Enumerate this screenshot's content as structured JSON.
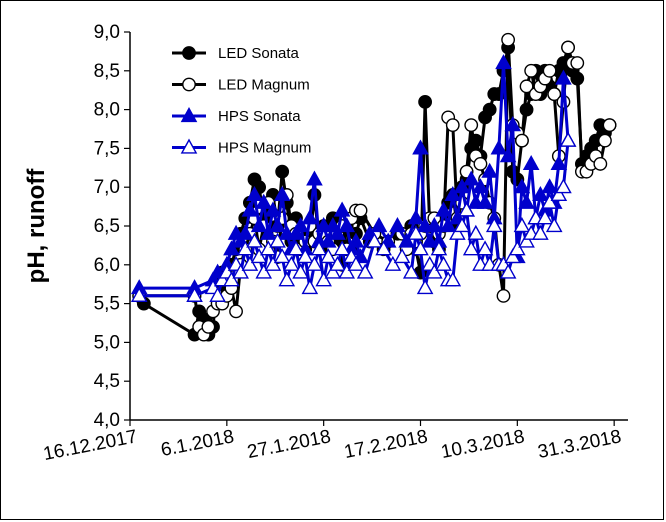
{
  "chart_data": {
    "type": "line",
    "title": "",
    "xlabel": "",
    "ylabel": "pH, runoff",
    "ylim": [
      4.0,
      9.0
    ],
    "ytick_labels": [
      "4,0",
      "4,5",
      "5,0",
      "5,5",
      "6,0",
      "6,5",
      "7,0",
      "7,5",
      "8,0",
      "8,5",
      "9,0"
    ],
    "xlim_days": [
      0,
      108
    ],
    "xtick_days": [
      0,
      21,
      42,
      63,
      84,
      105
    ],
    "xtick_labels": [
      "16.12.2017",
      "6.1.2018",
      "27.1.2018",
      "17.2.2018",
      "10.3.2018",
      "31.3.2018"
    ],
    "legend": [
      "LED Sonata",
      "LED Magnum",
      "HPS Sonata",
      "HPS Magnum"
    ],
    "legend_position": "top-left",
    "series": [
      {
        "name": "LED Sonata",
        "color": "#000000",
        "marker": "circle",
        "filled": true,
        "points": [
          [
            2,
            5.6
          ],
          [
            3,
            5.5
          ],
          [
            14,
            5.1
          ],
          [
            15,
            5.4
          ],
          [
            16,
            5.3
          ],
          [
            17,
            5.1
          ],
          [
            18,
            5.2
          ],
          [
            19,
            5.8
          ],
          [
            20,
            5.9
          ],
          [
            21,
            5.7
          ],
          [
            22,
            6.0
          ],
          [
            23,
            6.2
          ],
          [
            24,
            6.4
          ],
          [
            25,
            6.6
          ],
          [
            26,
            6.8
          ],
          [
            27,
            7.1
          ],
          [
            28,
            7.0
          ],
          [
            29,
            6.6
          ],
          [
            30,
            6.5
          ],
          [
            31,
            6.9
          ],
          [
            32,
            6.5
          ],
          [
            33,
            7.2
          ],
          [
            34,
            6.8
          ],
          [
            35,
            6.3
          ],
          [
            36,
            6.6
          ],
          [
            37,
            6.4
          ],
          [
            38,
            6.2
          ],
          [
            39,
            6.3
          ],
          [
            40,
            6.9
          ],
          [
            41,
            6.3
          ],
          [
            42,
            6.5
          ],
          [
            43,
            6.2
          ],
          [
            44,
            6.6
          ],
          [
            45,
            6.3
          ],
          [
            46,
            6.0
          ],
          [
            47,
            6.5
          ],
          [
            48,
            6.2
          ],
          [
            49,
            6.4
          ],
          [
            50,
            6.6
          ],
          [
            52,
            6.3
          ],
          [
            55,
            6.2
          ],
          [
            58,
            6.4
          ],
          [
            61,
            6.5
          ],
          [
            62,
            6.2
          ],
          [
            63,
            5.9
          ],
          [
            64,
            8.1
          ],
          [
            65,
            6.5
          ],
          [
            66,
            6.3
          ],
          [
            67,
            6.2
          ],
          [
            68,
            6.6
          ],
          [
            69,
            6.8
          ],
          [
            70,
            6.9
          ],
          [
            71,
            6.5
          ],
          [
            72,
            7.0
          ],
          [
            73,
            7.1
          ],
          [
            74,
            7.5
          ],
          [
            75,
            7.6
          ],
          [
            76,
            7.4
          ],
          [
            77,
            7.9
          ],
          [
            78,
            8.0
          ],
          [
            79,
            8.2
          ],
          [
            80,
            8.2
          ],
          [
            81,
            8.5
          ],
          [
            82,
            8.8
          ],
          [
            83,
            7.2
          ],
          [
            84,
            7.1
          ],
          [
            85,
            7.6
          ],
          [
            86,
            8.0
          ],
          [
            87,
            8.2
          ],
          [
            88,
            8.5
          ],
          [
            89,
            8.2
          ],
          [
            90,
            8.5
          ],
          [
            91,
            8.3
          ],
          [
            92,
            8.2
          ],
          [
            93,
            8.5
          ],
          [
            94,
            8.6
          ],
          [
            95,
            8.8
          ],
          [
            96,
            8.5
          ],
          [
            97,
            8.4
          ],
          [
            98,
            7.3
          ],
          [
            99,
            7.4
          ],
          [
            100,
            7.5
          ],
          [
            101,
            7.6
          ],
          [
            102,
            7.8
          ],
          [
            103,
            7.7
          ],
          [
            104,
            7.8
          ]
        ]
      },
      {
        "name": "LED Magnum",
        "color": "#000000",
        "marker": "circle",
        "filled": false,
        "points": [
          [
            2,
            5.6
          ],
          [
            14,
            5.6
          ],
          [
            15,
            5.2
          ],
          [
            16,
            5.1
          ],
          [
            17,
            5.2
          ],
          [
            18,
            5.4
          ],
          [
            19,
            5.5
          ],
          [
            20,
            5.5
          ],
          [
            21,
            5.6
          ],
          [
            22,
            5.7
          ],
          [
            23,
            5.4
          ],
          [
            24,
            6.0
          ],
          [
            25,
            6.2
          ],
          [
            26,
            6.4
          ],
          [
            27,
            6.6
          ],
          [
            28,
            6.2
          ],
          [
            29,
            6.5
          ],
          [
            30,
            6.8
          ],
          [
            31,
            6.3
          ],
          [
            32,
            6.1
          ],
          [
            33,
            6.6
          ],
          [
            34,
            6.9
          ],
          [
            35,
            6.5
          ],
          [
            36,
            6.4
          ],
          [
            37,
            6.2
          ],
          [
            38,
            6.3
          ],
          [
            39,
            6.5
          ],
          [
            40,
            6.3
          ],
          [
            41,
            6.4
          ],
          [
            42,
            6.4
          ],
          [
            43,
            6.3
          ],
          [
            44,
            6.2
          ],
          [
            45,
            6.4
          ],
          [
            46,
            6.5
          ],
          [
            47,
            6.2
          ],
          [
            48,
            6.6
          ],
          [
            49,
            6.7
          ],
          [
            50,
            6.7
          ],
          [
            53,
            6.4
          ],
          [
            56,
            6.3
          ],
          [
            59,
            6.4
          ],
          [
            60,
            6.2
          ],
          [
            61,
            6.4
          ],
          [
            62,
            6.3
          ],
          [
            63,
            6.4
          ],
          [
            64,
            6.5
          ],
          [
            65,
            6.6
          ],
          [
            66,
            6.6
          ],
          [
            67,
            6.4
          ],
          [
            68,
            6.5
          ],
          [
            69,
            7.9
          ],
          [
            70,
            7.8
          ],
          [
            71,
            6.6
          ],
          [
            72,
            6.8
          ],
          [
            73,
            7.2
          ],
          [
            74,
            7.8
          ],
          [
            75,
            7.4
          ],
          [
            76,
            7.3
          ],
          [
            77,
            7.1
          ],
          [
            78,
            6.8
          ],
          [
            79,
            6.6
          ],
          [
            80,
            6.0
          ],
          [
            81,
            5.6
          ],
          [
            82,
            8.9
          ],
          [
            83,
            7.8
          ],
          [
            84,
            7.7
          ],
          [
            85,
            7.6
          ],
          [
            86,
            8.3
          ],
          [
            87,
            8.5
          ],
          [
            88,
            8.2
          ],
          [
            89,
            8.3
          ],
          [
            90,
            8.4
          ],
          [
            91,
            8.5
          ],
          [
            92,
            8.2
          ],
          [
            93,
            7.4
          ],
          [
            94,
            8.1
          ],
          [
            95,
            8.8
          ],
          [
            96,
            8.6
          ],
          [
            97,
            8.6
          ],
          [
            98,
            7.2
          ],
          [
            99,
            7.2
          ],
          [
            100,
            7.3
          ],
          [
            101,
            7.4
          ],
          [
            102,
            7.3
          ],
          [
            103,
            7.6
          ],
          [
            104,
            7.8
          ]
        ]
      },
      {
        "name": "HPS Sonata",
        "color": "#0000cc",
        "marker": "triangle",
        "filled": true,
        "points": [
          [
            2,
            5.7
          ],
          [
            14,
            5.7
          ],
          [
            18,
            5.8
          ],
          [
            19,
            5.9
          ],
          [
            20,
            5.8
          ],
          [
            21,
            6.0
          ],
          [
            22,
            6.2
          ],
          [
            23,
            6.4
          ],
          [
            24,
            6.3
          ],
          [
            25,
            6.4
          ],
          [
            26,
            6.7
          ],
          [
            27,
            6.9
          ],
          [
            28,
            6.5
          ],
          [
            29,
            6.8
          ],
          [
            30,
            6.4
          ],
          [
            31,
            6.7
          ],
          [
            32,
            6.5
          ],
          [
            33,
            6.9
          ],
          [
            34,
            6.4
          ],
          [
            35,
            6.2
          ],
          [
            36,
            6.4
          ],
          [
            37,
            6.5
          ],
          [
            38,
            6.2
          ],
          [
            39,
            6.6
          ],
          [
            40,
            7.1
          ],
          [
            41,
            6.3
          ],
          [
            42,
            6.5
          ],
          [
            43,
            6.3
          ],
          [
            44,
            6.5
          ],
          [
            45,
            6.4
          ],
          [
            46,
            6.7
          ],
          [
            47,
            6.5
          ],
          [
            48,
            6.2
          ],
          [
            49,
            6.3
          ],
          [
            50,
            6.1
          ],
          [
            52,
            6.4
          ],
          [
            54,
            6.5
          ],
          [
            56,
            6.3
          ],
          [
            58,
            6.5
          ],
          [
            60,
            6.3
          ],
          [
            62,
            6.6
          ],
          [
            63,
            7.5
          ],
          [
            64,
            6.5
          ],
          [
            65,
            6.3
          ],
          [
            66,
            6.5
          ],
          [
            67,
            6.3
          ],
          [
            68,
            6.7
          ],
          [
            69,
            6.5
          ],
          [
            70,
            6.9
          ],
          [
            71,
            6.6
          ],
          [
            72,
            7.0
          ],
          [
            73,
            6.7
          ],
          [
            74,
            7.1
          ],
          [
            75,
            6.8
          ],
          [
            76,
            7.0
          ],
          [
            77,
            6.8
          ],
          [
            78,
            7.2
          ],
          [
            79,
            6.6
          ],
          [
            80,
            7.5
          ],
          [
            81,
            8.6
          ],
          [
            82,
            7.4
          ],
          [
            83,
            7.8
          ],
          [
            84,
            6.1
          ],
          [
            85,
            7.0
          ],
          [
            86,
            6.8
          ],
          [
            87,
            7.3
          ],
          [
            88,
            6.6
          ],
          [
            89,
            6.9
          ],
          [
            90,
            6.7
          ],
          [
            91,
            7.0
          ],
          [
            92,
            6.8
          ],
          [
            93,
            7.3
          ],
          [
            94,
            8.4
          ],
          [
            95,
            7.6
          ]
        ]
      },
      {
        "name": "HPS Magnum",
        "color": "#0000cc",
        "marker": "triangle",
        "filled": false,
        "points": [
          [
            2,
            5.6
          ],
          [
            14,
            5.6
          ],
          [
            18,
            5.7
          ],
          [
            19,
            5.6
          ],
          [
            20,
            5.8
          ],
          [
            21,
            5.9
          ],
          [
            22,
            5.8
          ],
          [
            23,
            6.0
          ],
          [
            24,
            5.9
          ],
          [
            25,
            6.2
          ],
          [
            26,
            6.0
          ],
          [
            27,
            6.3
          ],
          [
            28,
            6.1
          ],
          [
            29,
            5.9
          ],
          [
            30,
            6.2
          ],
          [
            31,
            6.0
          ],
          [
            32,
            6.3
          ],
          [
            33,
            6.1
          ],
          [
            34,
            5.8
          ],
          [
            35,
            6.0
          ],
          [
            36,
            6.2
          ],
          [
            37,
            5.9
          ],
          [
            38,
            6.1
          ],
          [
            39,
            5.7
          ],
          [
            40,
            6.0
          ],
          [
            41,
            6.2
          ],
          [
            42,
            5.8
          ],
          [
            43,
            6.1
          ],
          [
            44,
            5.9
          ],
          [
            45,
            6.0
          ],
          [
            46,
            6.2
          ],
          [
            47,
            5.9
          ],
          [
            48,
            6.1
          ],
          [
            49,
            6.0
          ],
          [
            51,
            5.9
          ],
          [
            53,
            6.3
          ],
          [
            55,
            6.2
          ],
          [
            57,
            6.0
          ],
          [
            59,
            6.1
          ],
          [
            61,
            5.9
          ],
          [
            62,
            6.4
          ],
          [
            63,
            6.2
          ],
          [
            64,
            5.7
          ],
          [
            65,
            6.0
          ],
          [
            66,
            5.9
          ],
          [
            67,
            6.2
          ],
          [
            68,
            6.0
          ],
          [
            69,
            5.8
          ],
          [
            70,
            5.8
          ],
          [
            71,
            6.4
          ],
          [
            72,
            6.5
          ],
          [
            73,
            6.7
          ],
          [
            74,
            6.2
          ],
          [
            75,
            6.4
          ],
          [
            76,
            6.0
          ],
          [
            77,
            6.2
          ],
          [
            78,
            6.0
          ],
          [
            79,
            6.5
          ],
          [
            80,
            6.0
          ],
          [
            81,
            6.0
          ],
          [
            82,
            5.9
          ],
          [
            83,
            6.1
          ],
          [
            84,
            6.2
          ],
          [
            85,
            6.5
          ],
          [
            86,
            6.3
          ],
          [
            87,
            6.4
          ],
          [
            88,
            6.6
          ],
          [
            89,
            6.4
          ],
          [
            90,
            6.6
          ],
          [
            91,
            6.8
          ],
          [
            92,
            6.5
          ],
          [
            93,
            6.9
          ],
          [
            94,
            7.0
          ],
          [
            95,
            7.6
          ]
        ]
      }
    ]
  }
}
